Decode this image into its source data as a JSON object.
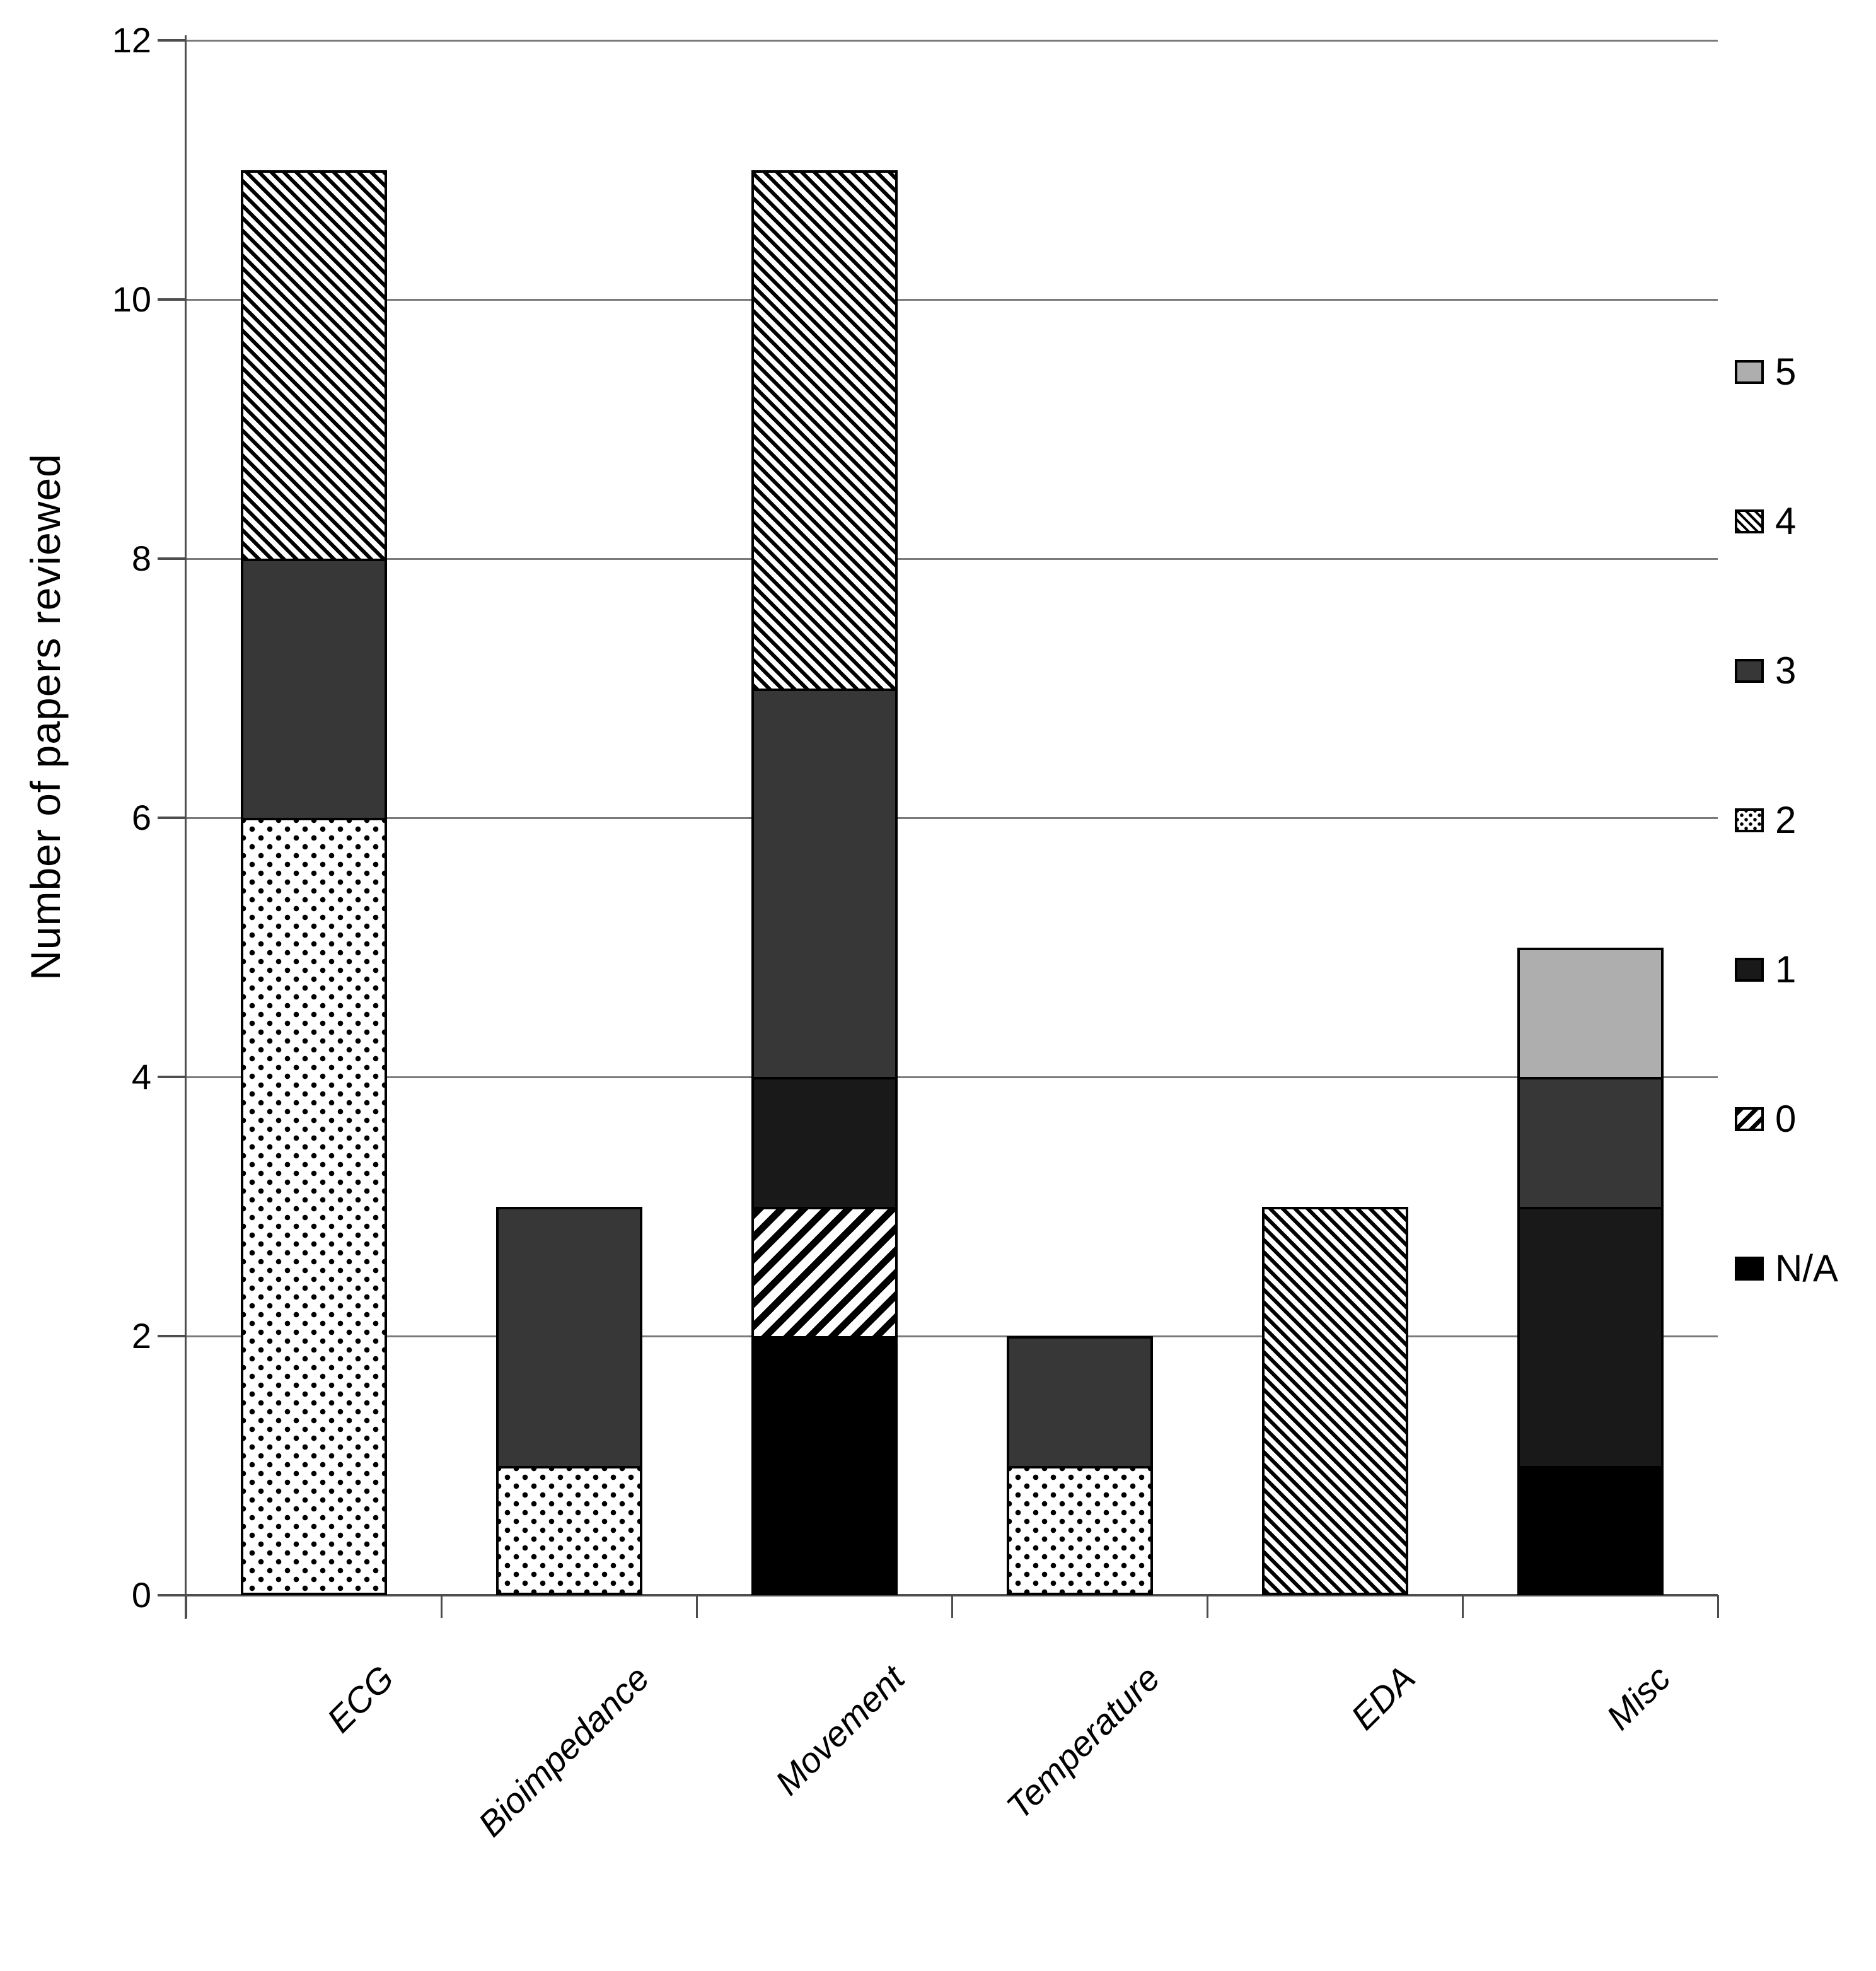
{
  "chart_data": {
    "type": "stacked-bar",
    "title": "",
    "ylabel": "Number of papers reviewed",
    "xlabel": "",
    "categories": [
      "ECG",
      "Bioimpedance",
      "Movement",
      "Temperature",
      "EDA",
      "Misc"
    ],
    "ylim": [
      0,
      12
    ],
    "yticks": [
      0,
      2,
      4,
      6,
      8,
      10,
      12
    ],
    "grid": "horizontal",
    "grid_color": "#7a7a7a",
    "axis_color": "#4d4d4d",
    "bar_totals": {
      "ECG": 11,
      "Bioimpedance": 3,
      "Movement": 11,
      "Temperature": 2,
      "EDA": 3,
      "Misc": 5
    },
    "stack_order_bottom_to_top": [
      "N/A",
      "0",
      "1",
      "2",
      "3",
      "4",
      "5"
    ],
    "series": [
      {
        "name": "N/A",
        "pattern": "solid",
        "fill": "#000000",
        "values": [
          0,
          0,
          2,
          0,
          0,
          1
        ]
      },
      {
        "name": "0",
        "pattern": "diagonal-hatch-slash",
        "fill": "#000000",
        "values": [
          0,
          0,
          1,
          0,
          0,
          0
        ]
      },
      {
        "name": "1",
        "pattern": "solid",
        "fill": "#191919",
        "values": [
          0,
          0,
          1,
          0,
          0,
          2
        ]
      },
      {
        "name": "2",
        "pattern": "dots",
        "fill": "#000000",
        "values": [
          6,
          1,
          0,
          1,
          0,
          0
        ]
      },
      {
        "name": "3",
        "pattern": "solid",
        "fill": "#373737",
        "values": [
          2,
          2,
          3,
          1,
          0,
          1
        ]
      },
      {
        "name": "4",
        "pattern": "diagonal-hatch-backslash",
        "fill": "#000000",
        "values": [
          3,
          0,
          4,
          0,
          3,
          0
        ]
      },
      {
        "name": "5",
        "pattern": "solid",
        "fill": "#aeaeae",
        "values": [
          0,
          0,
          0,
          0,
          0,
          1
        ]
      }
    ],
    "legend": {
      "position": "right",
      "order_top_to_bottom": [
        "5",
        "4",
        "3",
        "2",
        "1",
        "0",
        "N/A"
      ]
    }
  }
}
